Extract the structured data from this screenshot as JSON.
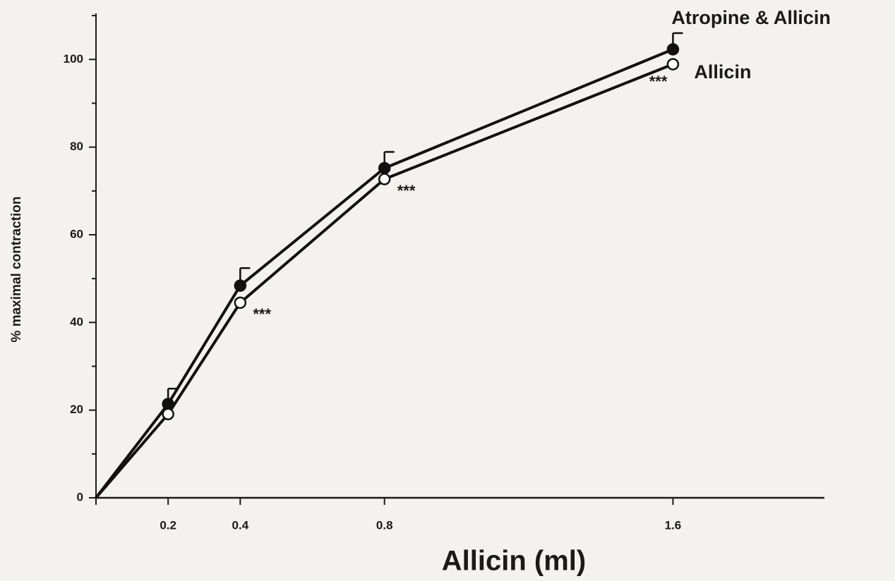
{
  "chart_data": {
    "type": "line",
    "x_label": "Allicin (ml)",
    "y_label": "% maximal contraction",
    "x": [
      0,
      0.2,
      0.4,
      0.8,
      1.6
    ],
    "xlim": [
      0,
      2.02
    ],
    "xticks": [
      0.2,
      0.4,
      0.8,
      1.6
    ],
    "ylim": [
      0,
      110.5
    ],
    "yticks": [
      0,
      20,
      40,
      60,
      80,
      100
    ],
    "yminorticks": [
      10,
      30,
      50,
      70,
      90,
      110
    ],
    "series": [
      {
        "name": "Atropine & Allicin",
        "color": "#111111",
        "marker": "filled",
        "values": [
          0,
          21.4,
          48.4,
          75.2,
          102.3
        ],
        "errors": [
          null,
          3.5,
          4.0,
          3.7,
          3.7
        ]
      },
      {
        "name": "Allicin",
        "color": "#111111",
        "marker": "open",
        "values": [
          0,
          19.1,
          44.5,
          72.7,
          98.9
        ]
      }
    ],
    "annotations": [
      {
        "text": "***",
        "x": 0.4
      },
      {
        "text": "***",
        "x": 0.8
      },
      {
        "text": "***",
        "x": 1.6
      }
    ]
  }
}
